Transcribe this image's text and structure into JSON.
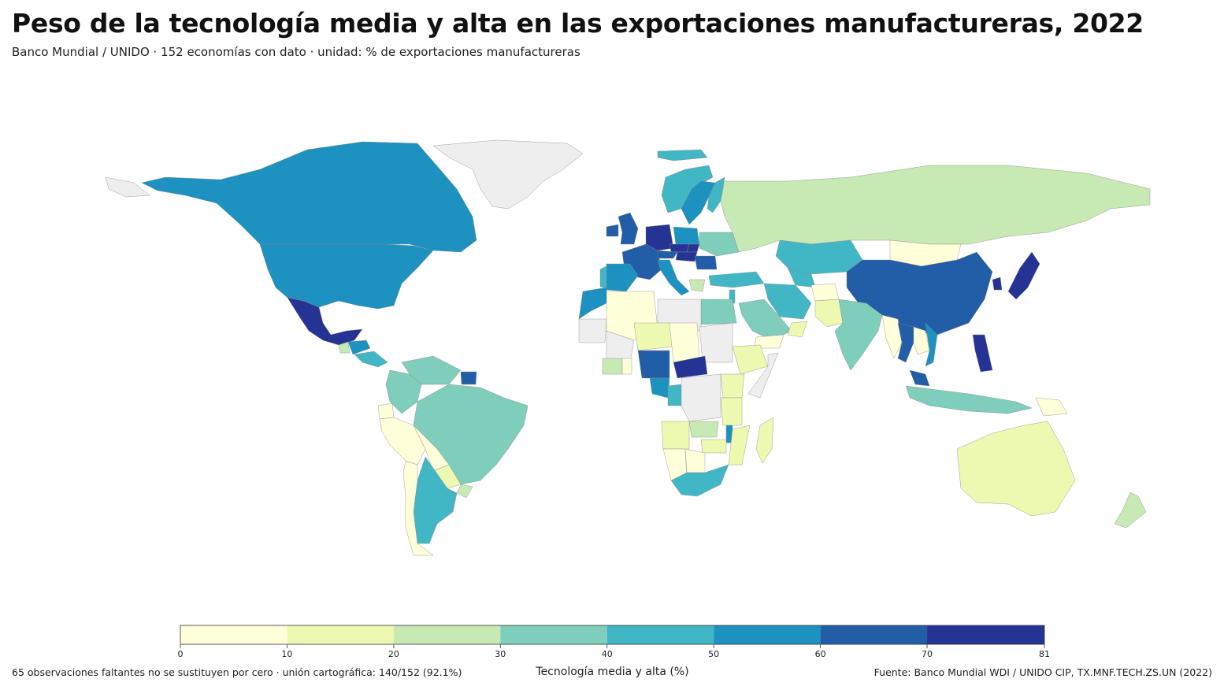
{
  "header": {
    "title": "Peso de la tecnología media y alta en las exportaciones manufactureras, 2022",
    "subtitle": "Banco Mundial / UNIDO · 152 economías con dato · unidad: % de exportaciones manufactureras"
  },
  "footer": {
    "left_note": "65 observaciones faltantes no se sustituyen por cero · unión cartográfica: 140/152 (92.1%)",
    "source": "Fuente: Banco Mundial WDI / UNIDO CIP, TX.MNF.TECH.ZS.UN (2022)"
  },
  "chart_data": {
    "type": "choropleth",
    "legend": {
      "title": "Tecnología media y alta (%)",
      "range": [
        0,
        81
      ],
      "breaks": [
        0,
        10,
        20,
        30,
        40,
        50,
        60,
        70,
        81
      ],
      "tick_labels": [
        "0",
        "10",
        "20",
        "30",
        "40",
        "50",
        "60",
        "70",
        "81"
      ],
      "colors": [
        "#ffffd9",
        "#edf8b1",
        "#c7e9b4",
        "#7fcdbb",
        "#41b6c4",
        "#1d91c0",
        "#225ea8",
        "#253494",
        "#081d58"
      ]
    },
    "missing_color": "#eeeeee",
    "countries": [
      {
        "name": "Canada",
        "value": 55
      },
      {
        "name": "United States",
        "value": 55
      },
      {
        "name": "Mexico",
        "value": 78
      },
      {
        "name": "Greenland",
        "value": null
      },
      {
        "name": "Guatemala",
        "value": 25
      },
      {
        "name": "Honduras",
        "value": 52
      },
      {
        "name": "Costa Rica",
        "value": 45
      },
      {
        "name": "Colombia",
        "value": 35
      },
      {
        "name": "Venezuela",
        "value": 35
      },
      {
        "name": "Ecuador",
        "value": 5
      },
      {
        "name": "Peru",
        "value": 5
      },
      {
        "name": "Bolivia",
        "value": 5
      },
      {
        "name": "Brazil",
        "value": 36
      },
      {
        "name": "Paraguay",
        "value": 15
      },
      {
        "name": "Argentina",
        "value": 42
      },
      {
        "name": "Chile",
        "value": 8
      },
      {
        "name": "Uruguay",
        "value": 22
      },
      {
        "name": "Suriname",
        "value": 60
      },
      {
        "name": "Iceland",
        "value": 42
      },
      {
        "name": "Norway",
        "value": 45
      },
      {
        "name": "Sweden",
        "value": 55
      },
      {
        "name": "Finland",
        "value": 48
      },
      {
        "name": "United Kingdom",
        "value": 62
      },
      {
        "name": "Ireland",
        "value": 62
      },
      {
        "name": "France",
        "value": 65
      },
      {
        "name": "Germany",
        "value": 75
      },
      {
        "name": "Czechia",
        "value": 78
      },
      {
        "name": "Poland",
        "value": 58
      },
      {
        "name": "Austria",
        "value": 66
      },
      {
        "name": "Spain",
        "value": 52
      },
      {
        "name": "Portugal",
        "value": 40
      },
      {
        "name": "Italy",
        "value": 58
      },
      {
        "name": "Hungary",
        "value": 80
      },
      {
        "name": "Slovakia",
        "value": 79
      },
      {
        "name": "Romania",
        "value": 60
      },
      {
        "name": "Ukraine",
        "value": 38
      },
      {
        "name": "Turkey",
        "value": 45
      },
      {
        "name": "Greece",
        "value": 22
      },
      {
        "name": "Russia",
        "value": 25
      },
      {
        "name": "Kazakhstan",
        "value": 42
      },
      {
        "name": "Uzbekistan",
        "value": 42
      },
      {
        "name": "Mongolia",
        "value": 5
      },
      {
        "name": "China",
        "value": 62
      },
      {
        "name": "Japan",
        "value": 78
      },
      {
        "name": "South Korea",
        "value": 78
      },
      {
        "name": "India",
        "value": 35
      },
      {
        "name": "Pakistan",
        "value": 12
      },
      {
        "name": "Afghanistan",
        "value": 5
      },
      {
        "name": "Iran",
        "value": 42
      },
      {
        "name": "Saudi Arabia",
        "value": 32
      },
      {
        "name": "Oman",
        "value": 15
      },
      {
        "name": "Yemen",
        "value": 5
      },
      {
        "name": "Israel",
        "value": 48
      },
      {
        "name": "Egypt",
        "value": 35
      },
      {
        "name": "Libya",
        "value": null
      },
      {
        "name": "Algeria",
        "value": 5
      },
      {
        "name": "Morocco",
        "value": 55
      },
      {
        "name": "Mauritania",
        "value": null
      },
      {
        "name": "Mali",
        "value": null
      },
      {
        "name": "Niger",
        "value": 15
      },
      {
        "name": "Chad",
        "value": 8
      },
      {
        "name": "Sudan",
        "value": null
      },
      {
        "name": "Ethiopia",
        "value": 18
      },
      {
        "name": "Somalia",
        "value": null
      },
      {
        "name": "Kenya",
        "value": 15
      },
      {
        "name": "Tanzania",
        "value": 15
      },
      {
        "name": "Nigeria",
        "value": 62
      },
      {
        "name": "Central African Republic",
        "value": 78
      },
      {
        "name": "Ghana",
        "value": 5
      },
      {
        "name": "Ivory Coast",
        "value": 25
      },
      {
        "name": "Cameroon",
        "value": 52
      },
      {
        "name": "Congo",
        "value": 42
      },
      {
        "name": "DR Congo",
        "value": null
      },
      {
        "name": "Angola",
        "value": 15
      },
      {
        "name": "Zambia",
        "value": 22
      },
      {
        "name": "Malawi",
        "value": 55
      },
      {
        "name": "Mozambique",
        "value": 15
      },
      {
        "name": "Namibia",
        "value": 5
      },
      {
        "name": "Botswana",
        "value": 5
      },
      {
        "name": "Zimbabwe",
        "value": 15
      },
      {
        "name": "South Africa",
        "value": 45
      },
      {
        "name": "Madagascar",
        "value": 15
      },
      {
        "name": "Myanmar",
        "value": 5
      },
      {
        "name": "Thailand",
        "value": 62
      },
      {
        "name": "Vietnam",
        "value": 55
      },
      {
        "name": "Laos",
        "value": 5
      },
      {
        "name": "Malaysia",
        "value": 62
      },
      {
        "name": "Indonesia",
        "value": 36
      },
      {
        "name": "Philippines",
        "value": 78
      },
      {
        "name": "Papua New Guinea",
        "value": 5
      },
      {
        "name": "Australia",
        "value": 15
      },
      {
        "name": "New Zealand",
        "value": 22
      }
    ]
  }
}
